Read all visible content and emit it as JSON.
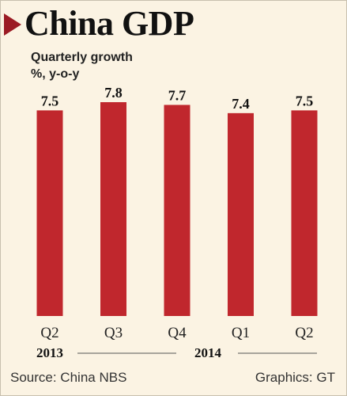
{
  "title": "China GDP",
  "subtitle": "Quarterly growth",
  "unit": "%, y-o-y",
  "chart_data": {
    "type": "bar",
    "categories": [
      "Q2",
      "Q3",
      "Q4",
      "Q1",
      "Q2"
    ],
    "values": [
      7.5,
      7.8,
      7.7,
      7.4,
      7.5
    ],
    "value_labels": [
      "7.5",
      "7.8",
      "7.7",
      "7.4",
      "7.5"
    ],
    "year_groups": [
      {
        "label": "2013",
        "start": 0,
        "end": 2
      },
      {
        "label": "2014",
        "start": 3,
        "end": 4
      }
    ],
    "ylim": [
      0,
      7.8
    ],
    "bar_color": "#c0272d",
    "grid": false,
    "legend": "none"
  },
  "footer": {
    "source": "Source: China NBS",
    "credit": "Graphics: GT"
  }
}
